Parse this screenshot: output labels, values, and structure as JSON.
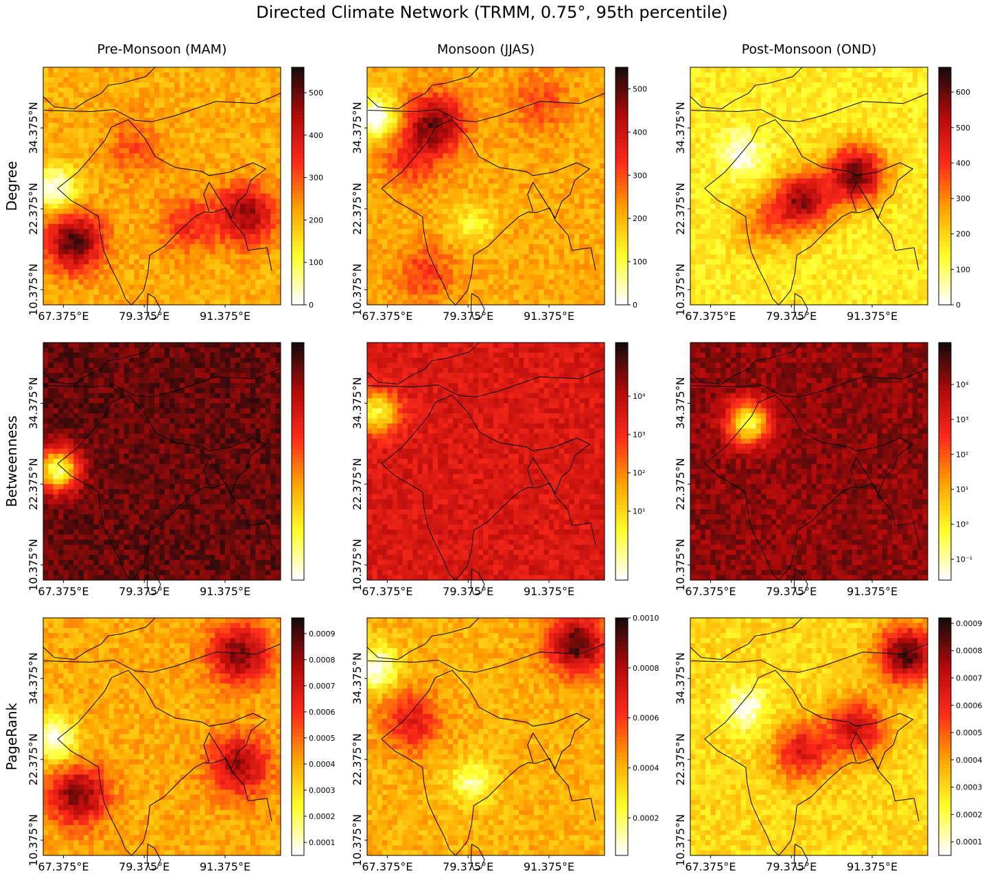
{
  "title": "Directed Climate Network (TRMM, 0.75°, 95th percentile)",
  "columns": [
    "Pre-Monsoon (MAM)",
    "Monsoon (JJAS)",
    "Post-Monsoon (OND)"
  ],
  "rows": [
    "Degree",
    "Betweenness",
    "PageRank"
  ],
  "colormap": [
    "#ffffff",
    "#ffff2a",
    "#ffa500",
    "#ff2a1a",
    "#b20a0a",
    "#1a0a0a"
  ],
  "chart_data": [
    {
      "type": "heatmap",
      "panel": "Degree / Pre-Monsoon (MAM)",
      "x_ticks": [
        "67.375°E",
        "79.375°E",
        "91.375°E"
      ],
      "y_ticks": [
        "34.375°N",
        "22.375°N",
        "10.375°N"
      ],
      "lon_range": [
        64.375,
        99.625
      ],
      "lat_range": [
        8.125,
        43.375
      ],
      "colorbar": {
        "scale": "linear",
        "range": [
          0,
          560
        ],
        "ticks": [
          "0",
          "100",
          "200",
          "300",
          "400",
          "500"
        ]
      },
      "hotspots": [
        {
          "lon": 69.0,
          "lat": 17.5,
          "value": 520
        },
        {
          "lon": 94.5,
          "lat": 21.5,
          "value": 470
        },
        {
          "lon": 86.0,
          "lat": 20.0,
          "value": 340
        },
        {
          "lon": 78.0,
          "lat": 31.5,
          "value": 300
        }
      ],
      "base_value": 210,
      "low_zones": [
        {
          "lon": 66.0,
          "lat": 25.5,
          "value": 0
        }
      ]
    },
    {
      "type": "heatmap",
      "panel": "Degree / Monsoon (JJAS)",
      "x_ticks": [
        "67.375°E",
        "79.375°E",
        "91.375°E"
      ],
      "y_ticks": [
        "34.375°N",
        "22.375°N",
        "10.375°N"
      ],
      "lon_range": [
        64.375,
        99.625
      ],
      "lat_range": [
        8.125,
        43.375
      ],
      "colorbar": {
        "scale": "linear",
        "range": [
          0,
          550
        ],
        "ticks": [
          "0",
          "100",
          "200",
          "300",
          "400",
          "500"
        ]
      },
      "hotspots": [
        {
          "lon": 74.5,
          "lat": 35.0,
          "value": 480
        },
        {
          "lon": 71.0,
          "lat": 30.0,
          "value": 330
        },
        {
          "lon": 73.0,
          "lat": 13.0,
          "value": 320
        },
        {
          "lon": 90.0,
          "lat": 38.0,
          "value": 300
        }
      ],
      "base_value": 210,
      "low_zones": [
        {
          "lon": 65.5,
          "lat": 36.0,
          "value": 0
        },
        {
          "lon": 80.0,
          "lat": 20.0,
          "value": 110
        }
      ]
    },
    {
      "type": "heatmap",
      "panel": "Degree / Post-Monsoon (OND)",
      "x_ticks": [
        "67.375°E",
        "79.375°E",
        "91.375°E"
      ],
      "y_ticks": [
        "34.375°N",
        "22.375°N",
        "10.375°N"
      ],
      "lon_range": [
        64.375,
        99.625
      ],
      "lat_range": [
        8.125,
        43.375
      ],
      "colorbar": {
        "scale": "linear",
        "range": [
          0,
          670
        ],
        "ticks": [
          "0",
          "100",
          "200",
          "300",
          "400",
          "500",
          "600"
        ]
      },
      "hotspots": [
        {
          "lon": 89.0,
          "lat": 27.5,
          "value": 600
        },
        {
          "lon": 81.0,
          "lat": 23.5,
          "value": 560
        },
        {
          "lon": 75.0,
          "lat": 20.0,
          "value": 300
        }
      ],
      "base_value": 160,
      "low_zones": [
        {
          "lon": 72.0,
          "lat": 30.5,
          "value": 0
        }
      ]
    },
    {
      "type": "heatmap",
      "panel": "Betweenness / Pre-Monsoon (MAM)",
      "x_ticks": [
        "67.375°E",
        "79.375°E",
        "91.375°E"
      ],
      "y_ticks": [
        "34.375°N",
        "22.375°N",
        "10.375°N"
      ],
      "lon_range": [
        64.375,
        99.625
      ],
      "lat_range": [
        8.125,
        43.375
      ],
      "colorbar": {
        "scale": "log",
        "ticks": []
      },
      "hotspots": [],
      "base_value": 0.9,
      "low_zones": [
        {
          "lon": 66.5,
          "lat": 24.5,
          "value": 0.1
        }
      ]
    },
    {
      "type": "heatmap",
      "panel": "Betweenness / Monsoon (JJAS)",
      "x_ticks": [
        "67.375°E",
        "79.375°E",
        "91.375°E"
      ],
      "y_ticks": [
        "34.375°N",
        "22.375°N",
        "10.375°N"
      ],
      "lon_range": [
        64.375,
        99.625
      ],
      "lat_range": [
        8.125,
        43.375
      ],
      "colorbar": {
        "scale": "log",
        "ticks": [
          "10¹",
          "10²",
          "10³",
          "10⁴"
        ]
      },
      "hotspots": [],
      "base_value": 0.7,
      "low_zones": [
        {
          "lon": 66.0,
          "lat": 33.0,
          "value": 0.2
        }
      ]
    },
    {
      "type": "heatmap",
      "panel": "Betweenness / Post-Monsoon (OND)",
      "x_ticks": [
        "67.375°E",
        "79.375°E",
        "91.375°E"
      ],
      "y_ticks": [
        "34.375°N",
        "22.375°N",
        "10.375°N"
      ],
      "lon_range": [
        64.375,
        99.625
      ],
      "lat_range": [
        8.125,
        43.375
      ],
      "colorbar": {
        "scale": "log",
        "ticks": [
          "10⁻¹",
          "10⁰",
          "10¹",
          "10²",
          "10³",
          "10⁴"
        ]
      },
      "hotspots": [],
      "base_value": 0.85,
      "low_zones": [
        {
          "lon": 73.0,
          "lat": 31.5,
          "value": 0.15
        }
      ]
    },
    {
      "type": "heatmap",
      "panel": "PageRank / Pre-Monsoon (MAM)",
      "x_ticks": [
        "67.375°E",
        "79.375°E",
        "91.375°E"
      ],
      "y_ticks": [
        "34.375°N",
        "22.375°N",
        "10.375°N"
      ],
      "lon_range": [
        64.375,
        99.625
      ],
      "lat_range": [
        8.125,
        43.375
      ],
      "colorbar": {
        "scale": "linear",
        "range": [
          5e-05,
          0.00096
        ],
        "ticks": [
          "0.0001",
          "0.0002",
          "0.0003",
          "0.0004",
          "0.0005",
          "0.0006",
          "0.0007",
          "0.0008",
          "0.0009"
        ]
      },
      "hotspots": [
        {
          "lon": 69.5,
          "lat": 17.0,
          "value": 0.00085
        },
        {
          "lon": 93.5,
          "lat": 38.0,
          "value": 0.00085
        },
        {
          "lon": 93.5,
          "lat": 21.5,
          "value": 0.0008
        }
      ],
      "base_value": 0.0004,
      "low_zones": [
        {
          "lon": 66.0,
          "lat": 25.5,
          "value": 5e-05
        }
      ]
    },
    {
      "type": "heatmap",
      "panel": "PageRank / Monsoon (JJAS)",
      "x_ticks": [
        "67.375°E",
        "79.375°E",
        "91.375°E"
      ],
      "y_ticks": [
        "34.375°N",
        "22.375°N",
        "10.375°N"
      ],
      "lon_range": [
        64.375,
        99.625
      ],
      "lat_range": [
        8.125,
        43.375
      ],
      "colorbar": {
        "scale": "linear",
        "range": [
          5e-05,
          0.001
        ],
        "ticks": [
          "0.0002",
          "0.0004",
          "0.0006",
          "0.0008",
          "0.0010"
        ]
      },
      "hotspots": [
        {
          "lon": 95.5,
          "lat": 39.5,
          "value": 0.00095
        },
        {
          "lon": 71.0,
          "lat": 28.0,
          "value": 0.0007
        }
      ],
      "base_value": 0.0004,
      "low_zones": [
        {
          "lon": 65.5,
          "lat": 36.0,
          "value": 5e-05
        },
        {
          "lon": 80.0,
          "lat": 19.0,
          "value": 0.00015
        }
      ]
    },
    {
      "type": "heatmap",
      "panel": "PageRank / Post-Monsoon (OND)",
      "x_ticks": [
        "67.375°E",
        "79.375°E",
        "91.375°E"
      ],
      "y_ticks": [
        "34.375°N",
        "22.375°N",
        "10.375°N"
      ],
      "lon_range": [
        64.375,
        99.625
      ],
      "lat_range": [
        8.125,
        43.375
      ],
      "colorbar": {
        "scale": "linear",
        "range": [
          5e-05,
          0.00092
        ],
        "ticks": [
          "0.0001",
          "0.0002",
          "0.0003",
          "0.0004",
          "0.0005",
          "0.0006",
          "0.0007",
          "0.0008",
          "0.0009"
        ]
      },
      "hotspots": [
        {
          "lon": 96.5,
          "lat": 38.0,
          "value": 0.00088
        },
        {
          "lon": 89.0,
          "lat": 27.0,
          "value": 0.0007
        },
        {
          "lon": 81.0,
          "lat": 23.5,
          "value": 0.00065
        }
      ],
      "base_value": 0.0003,
      "low_zones": [
        {
          "lon": 72.5,
          "lat": 30.0,
          "value": 5e-05
        }
      ]
    }
  ]
}
